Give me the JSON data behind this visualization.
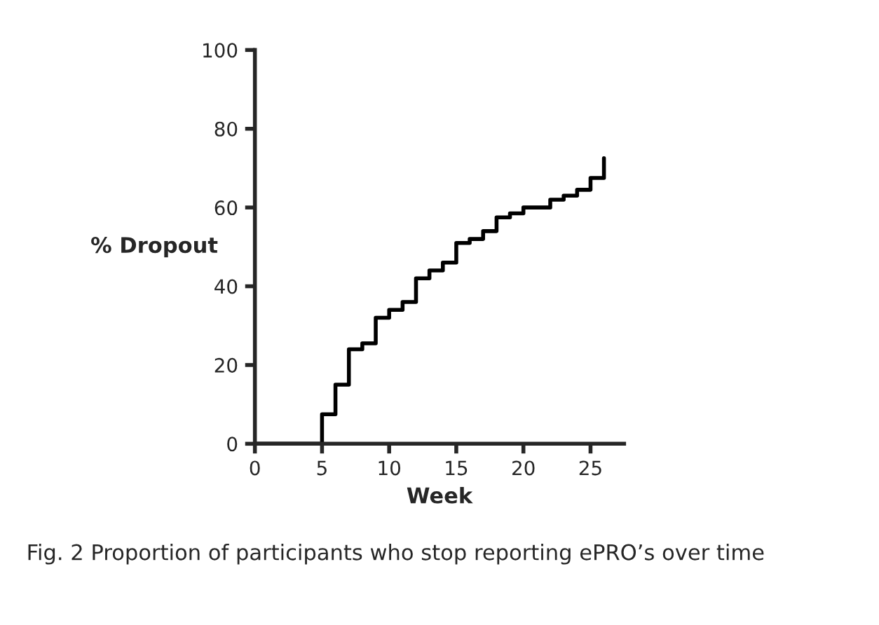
{
  "chart_data": {
    "type": "step",
    "xlabel": "Week",
    "ylabel": "% Dropout",
    "x": [
      0,
      5,
      6,
      7,
      8,
      9,
      10,
      11,
      12,
      13,
      14,
      15,
      16,
      17,
      18,
      19,
      20,
      21,
      22,
      23,
      24,
      25,
      26
    ],
    "values": [
      0,
      7.5,
      15,
      24,
      25.5,
      32,
      34,
      36,
      42,
      44,
      46,
      51,
      52,
      54,
      57.5,
      58.5,
      60,
      60,
      62,
      63,
      64.5,
      67.5,
      72.5
    ],
    "color": "#000000",
    "xlim": [
      0,
      27.5
    ],
    "xticks": [
      0,
      5,
      10,
      15,
      20,
      25
    ],
    "ylim": [
      0,
      100
    ],
    "yticks": [
      0,
      20,
      40,
      60,
      80,
      100
    ],
    "grid": false,
    "legend": false,
    "annotations": [
      "Fig. 2 Proportion of participants who stop reporting ePRO’s over time"
    ]
  }
}
